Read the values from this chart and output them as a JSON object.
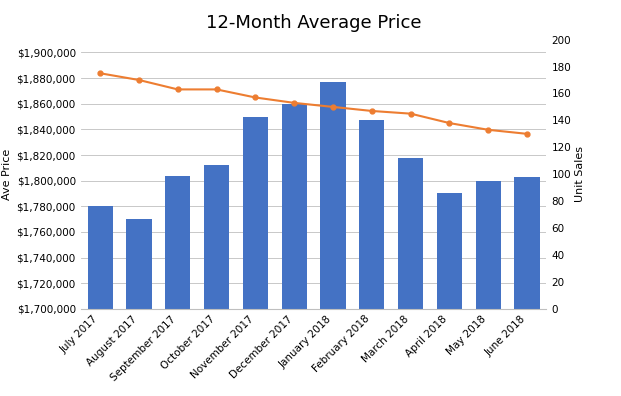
{
  "categories": [
    "July 2017",
    "August 2017",
    "September 2017",
    "October 2017",
    "November 2017",
    "December 2017",
    "January 2018",
    "February 2018",
    "March 2018",
    "April 2018",
    "May 2018",
    "June 2018"
  ],
  "ave_price": [
    1780000,
    1770000,
    1804000,
    1812000,
    1850000,
    1860000,
    1877000,
    1847000,
    1818000,
    1790000,
    1800000,
    1803000
  ],
  "unit_sales": [
    175,
    170,
    163,
    163,
    157,
    153,
    150,
    147,
    145,
    138,
    133,
    130
  ],
  "bar_color": "#4472c4",
  "line_color": "#ed7d31",
  "title": "12-Month Average Price",
  "ylabel_left": "Ave Price",
  "ylabel_right": "Unit Sales",
  "ylim_left": [
    1700000,
    1910000
  ],
  "ylim_right": [
    0,
    200
  ],
  "yticks_left": [
    1700000,
    1720000,
    1740000,
    1760000,
    1780000,
    1800000,
    1820000,
    1840000,
    1860000,
    1880000,
    1900000
  ],
  "yticks_right": [
    0,
    20,
    40,
    60,
    80,
    100,
    120,
    140,
    160,
    180,
    200
  ],
  "background_color": "#ffffff",
  "grid_color": "#bfbfbf",
  "title_fontsize": 13,
  "axis_label_fontsize": 8,
  "tick_fontsize": 7.5
}
